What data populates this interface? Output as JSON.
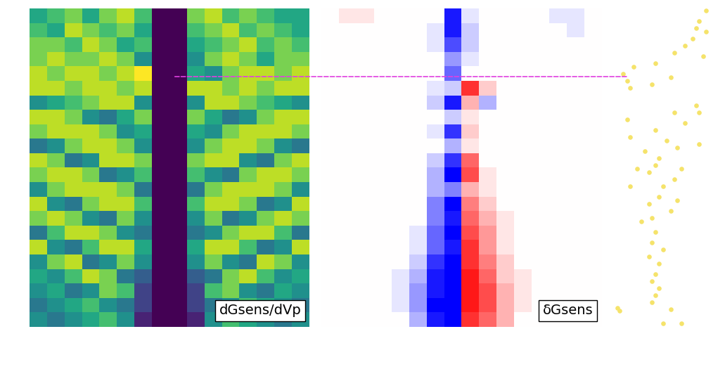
{
  "chart_data": [
    {
      "type": "heatmap",
      "label": "dGsens/dVp",
      "color": "viridis",
      "color_range": [
        0,
        1
      ],
      "tick_labels": false,
      "cells": [
        [
          0.6,
          0.7,
          0.8,
          0.6,
          0.8,
          0.9,
          0.7,
          0.0,
          0.0,
          0.8,
          0.9,
          0.7,
          0.8,
          0.7,
          0.6,
          0.6
        ],
        [
          0.7,
          0.6,
          0.9,
          0.8,
          0.7,
          0.8,
          0.6,
          0.0,
          0.0,
          0.7,
          0.8,
          0.9,
          0.7,
          0.8,
          0.7,
          0.6
        ],
        [
          0.8,
          0.8,
          0.7,
          0.9,
          0.8,
          0.6,
          0.7,
          0.0,
          0.0,
          0.6,
          0.7,
          0.8,
          0.9,
          0.7,
          0.8,
          0.7
        ],
        [
          0.8,
          0.9,
          0.8,
          0.8,
          0.9,
          0.8,
          0.5,
          0.0,
          0.0,
          0.5,
          0.8,
          0.9,
          0.8,
          0.6,
          0.8,
          0.8
        ],
        [
          0.9,
          0.8,
          0.9,
          0.9,
          0.8,
          0.9,
          1.0,
          0.0,
          0.0,
          0.6,
          0.5,
          0.8,
          0.9,
          0.9,
          0.8,
          0.9
        ],
        [
          0.9,
          0.9,
          0.8,
          0.9,
          0.9,
          0.8,
          0.9,
          0.0,
          0.0,
          0.9,
          0.9,
          0.8,
          0.9,
          0.8,
          0.9,
          0.9
        ],
        [
          0.5,
          0.6,
          0.7,
          0.8,
          0.9,
          0.9,
          0.5,
          0.0,
          0.0,
          0.5,
          0.9,
          0.9,
          0.8,
          0.7,
          0.6,
          0.5
        ],
        [
          0.9,
          0.9,
          0.8,
          0.5,
          0.4,
          0.6,
          0.8,
          0.0,
          0.0,
          0.8,
          0.6,
          0.4,
          0.5,
          0.8,
          0.9,
          0.9
        ],
        [
          0.8,
          0.9,
          0.9,
          0.9,
          0.8,
          0.5,
          0.6,
          0.0,
          0.0,
          0.6,
          0.5,
          0.8,
          0.9,
          0.9,
          0.9,
          0.8
        ],
        [
          0.4,
          0.5,
          0.8,
          0.9,
          0.9,
          0.8,
          0.5,
          0.0,
          0.0,
          0.5,
          0.8,
          0.9,
          0.9,
          0.8,
          0.5,
          0.4
        ],
        [
          0.9,
          0.8,
          0.4,
          0.5,
          0.9,
          0.9,
          0.8,
          0.0,
          0.0,
          0.8,
          0.9,
          0.9,
          0.5,
          0.4,
          0.8,
          0.9
        ],
        [
          0.8,
          0.9,
          0.9,
          0.8,
          0.4,
          0.5,
          0.7,
          0.0,
          0.0,
          0.7,
          0.5,
          0.4,
          0.8,
          0.9,
          0.9,
          0.8
        ],
        [
          0.5,
          0.8,
          0.9,
          0.9,
          0.9,
          0.8,
          0.4,
          0.0,
          0.0,
          0.4,
          0.8,
          0.9,
          0.9,
          0.9,
          0.8,
          0.5
        ],
        [
          0.9,
          0.5,
          0.4,
          0.8,
          0.9,
          0.9,
          0.7,
          0.0,
          0.0,
          0.7,
          0.9,
          0.9,
          0.8,
          0.4,
          0.5,
          0.9
        ],
        [
          0.8,
          0.9,
          0.8,
          0.5,
          0.4,
          0.8,
          0.5,
          0.0,
          0.0,
          0.5,
          0.8,
          0.4,
          0.5,
          0.8,
          0.9,
          0.8
        ],
        [
          0.4,
          0.7,
          0.9,
          0.9,
          0.8,
          0.5,
          0.4,
          0.0,
          0.0,
          0.4,
          0.5,
          0.8,
          0.9,
          0.9,
          0.7,
          0.4
        ],
        [
          0.9,
          0.5,
          0.4,
          0.7,
          0.9,
          0.9,
          0.6,
          0.0,
          0.0,
          0.6,
          0.9,
          0.9,
          0.7,
          0.4,
          0.5,
          0.9
        ],
        [
          0.5,
          0.8,
          0.9,
          0.4,
          0.5,
          0.8,
          0.5,
          0.0,
          0.0,
          0.5,
          0.8,
          0.5,
          0.4,
          0.9,
          0.8,
          0.5
        ],
        [
          0.6,
          0.5,
          0.7,
          0.9,
          0.8,
          0.4,
          0.3,
          0.0,
          0.0,
          0.3,
          0.4,
          0.8,
          0.9,
          0.7,
          0.5,
          0.6
        ],
        [
          0.5,
          0.6,
          0.4,
          0.5,
          0.8,
          0.7,
          0.2,
          0.0,
          0.0,
          0.2,
          0.7,
          0.8,
          0.5,
          0.4,
          0.6,
          0.5
        ],
        [
          0.4,
          0.5,
          0.6,
          0.7,
          0.5,
          0.4,
          0.2,
          0.0,
          0.0,
          0.2,
          0.4,
          0.5,
          0.7,
          0.6,
          0.5,
          0.4
        ],
        [
          0.5,
          0.4,
          0.5,
          0.6,
          0.7,
          0.5,
          0.1,
          0.0,
          0.0,
          0.1,
          0.5,
          0.7,
          0.6,
          0.5,
          0.4,
          0.5
        ]
      ]
    },
    {
      "type": "heatmap",
      "label": "δGsens",
      "color": "bwr",
      "color_range": [
        -1,
        1
      ],
      "tick_labels": false,
      "cells": [
        [
          0,
          0.1,
          0.1,
          0,
          0,
          0,
          0,
          -0.9,
          -0.1,
          0,
          0,
          0,
          0,
          -0.1,
          -0.1,
          0
        ],
        [
          0,
          0,
          0,
          0,
          0,
          0,
          -0.1,
          -0.9,
          -0.2,
          0,
          0,
          0,
          0,
          0,
          -0.1,
          0
        ],
        [
          0,
          0,
          0,
          0,
          0,
          0,
          -0.1,
          -0.7,
          -0.2,
          0,
          0,
          0,
          0,
          0,
          0,
          0
        ],
        [
          0,
          0,
          0,
          0,
          0,
          0,
          0,
          -0.4,
          -0.1,
          0,
          0,
          0,
          0,
          0,
          0,
          0
        ],
        [
          0,
          0,
          0,
          0,
          0,
          0,
          0,
          -0.6,
          0,
          0,
          0,
          0,
          0,
          0,
          0,
          0
        ],
        [
          0,
          0,
          0,
          0,
          0,
          0,
          -0.1,
          -0.2,
          0.8,
          0.2,
          0,
          0,
          0,
          0,
          0,
          0
        ],
        [
          0,
          0,
          0,
          0,
          0,
          0,
          -0.2,
          -0.9,
          0.3,
          -0.3,
          0,
          0,
          0,
          0,
          0,
          0
        ],
        [
          0,
          0,
          0,
          0,
          0,
          0,
          0,
          -0.2,
          0.1,
          0,
          0,
          0,
          0,
          0,
          0,
          0
        ],
        [
          0,
          0,
          0,
          0,
          0,
          0,
          -0.1,
          -0.8,
          0.2,
          0,
          0,
          0,
          0,
          0,
          0,
          0
        ],
        [
          0,
          0,
          0,
          0,
          0,
          0,
          0,
          -0.3,
          0.1,
          0,
          0,
          0,
          0,
          0,
          0,
          0
        ],
        [
          0,
          0,
          0,
          0,
          0,
          0,
          -0.2,
          -0.8,
          0.6,
          0,
          0,
          0,
          0,
          0,
          0,
          0
        ],
        [
          0,
          0,
          0,
          0,
          0,
          0,
          -0.3,
          -1.0,
          0.7,
          0.1,
          0,
          0,
          0,
          0,
          0,
          0
        ],
        [
          0,
          0,
          0,
          0,
          0,
          0,
          -0.3,
          -0.5,
          0.3,
          0.1,
          0,
          0,
          0,
          0,
          0,
          0
        ],
        [
          0,
          0,
          0,
          0,
          0,
          0,
          -0.5,
          -1.0,
          0.5,
          0.2,
          0,
          0,
          0,
          0,
          0,
          0
        ],
        [
          0,
          0,
          0,
          0,
          0,
          0,
          -0.5,
          -0.9,
          0.6,
          0.3,
          0.1,
          0,
          0,
          0,
          0,
          0
        ],
        [
          0,
          0,
          0,
          0,
          0,
          -0.1,
          -0.6,
          -1.0,
          0.7,
          0.4,
          0.1,
          0,
          0,
          0,
          0,
          0
        ],
        [
          0,
          0,
          0,
          0,
          0,
          -0.1,
          -0.6,
          -0.9,
          0.8,
          0.4,
          0.1,
          0,
          0,
          0,
          0,
          0
        ],
        [
          0,
          0,
          0,
          0,
          0,
          -0.2,
          -0.8,
          -1.0,
          0.8,
          0.5,
          0.2,
          0,
          0,
          0,
          0,
          0
        ],
        [
          0,
          0,
          0,
          0,
          -0.1,
          -0.3,
          -0.9,
          -1.0,
          0.9,
          0.6,
          0.2,
          0.1,
          0,
          0,
          0,
          0
        ],
        [
          0,
          0,
          0,
          0,
          -0.1,
          -0.4,
          -0.9,
          -1.0,
          0.9,
          0.7,
          0.3,
          0.1,
          0,
          0,
          0,
          0
        ],
        [
          0,
          0,
          0,
          0,
          -0.1,
          -0.4,
          -1.0,
          -1.0,
          0.9,
          0.7,
          0.3,
          0.1,
          0,
          0,
          0,
          0
        ],
        [
          0,
          0,
          0,
          0,
          0,
          -0.3,
          -0.9,
          -1.0,
          0.8,
          0.6,
          0.3,
          0,
          0,
          0,
          0,
          0
        ]
      ]
    },
    {
      "type": "scatter",
      "color": "#f5e36a",
      "marker": "o",
      "tick_labels": false,
      "xlim": [
        0,
        1
      ],
      "ylim": [
        22,
        0
      ],
      "x": [
        0.95,
        0.88,
        0.85,
        0.95,
        0.81,
        0.73,
        0.62,
        0.92,
        0.42,
        0.19,
        0.08,
        0.58,
        0.12,
        0.38,
        0.15,
        0.85,
        0.62,
        0.88,
        0.12,
        0.73,
        0.42,
        0.15,
        0.54,
        0.88,
        0.65,
        0.31,
        0.46,
        0.42,
        0.23,
        0.69,
        0.35,
        0.62,
        0.15,
        0.5,
        0.46,
        0.65,
        0.35,
        0.58,
        0.38,
        0.27,
        0.42,
        0.38,
        0.5,
        0.35,
        0.46,
        0.42,
        0.38,
        0.46,
        0.42,
        0.38,
        0.02,
        0.04,
        0.58,
        0.5,
        0.69
      ],
      "y": [
        0.15,
        0.87,
        1.36,
        1.6,
        2.09,
        2.57,
        3.06,
        3.3,
        3.79,
        4.03,
        4.52,
        4.76,
        5.0,
        5.24,
        5.49,
        6.7,
        7.19,
        7.19,
        7.67,
        7.92,
        8.4,
        8.89,
        9.13,
        9.37,
        9.62,
        9.86,
        10.34,
        10.83,
        11.07,
        11.07,
        11.32,
        11.8,
        12.29,
        12.29,
        13.02,
        13.26,
        13.5,
        13.99,
        14.47,
        14.71,
        15.44,
        16.17,
        16.66,
        17.14,
        17.63,
        18.36,
        18.84,
        19.33,
        19.81,
        20.3,
        20.69,
        20.88,
        20.79,
        21.76,
        21.76
      ]
    }
  ],
  "dashed_line": {
    "y": 4.7,
    "x_start": 8.3,
    "x_end": 0.12,
    "color": "#e040e0",
    "line_style": "dashed"
  }
}
